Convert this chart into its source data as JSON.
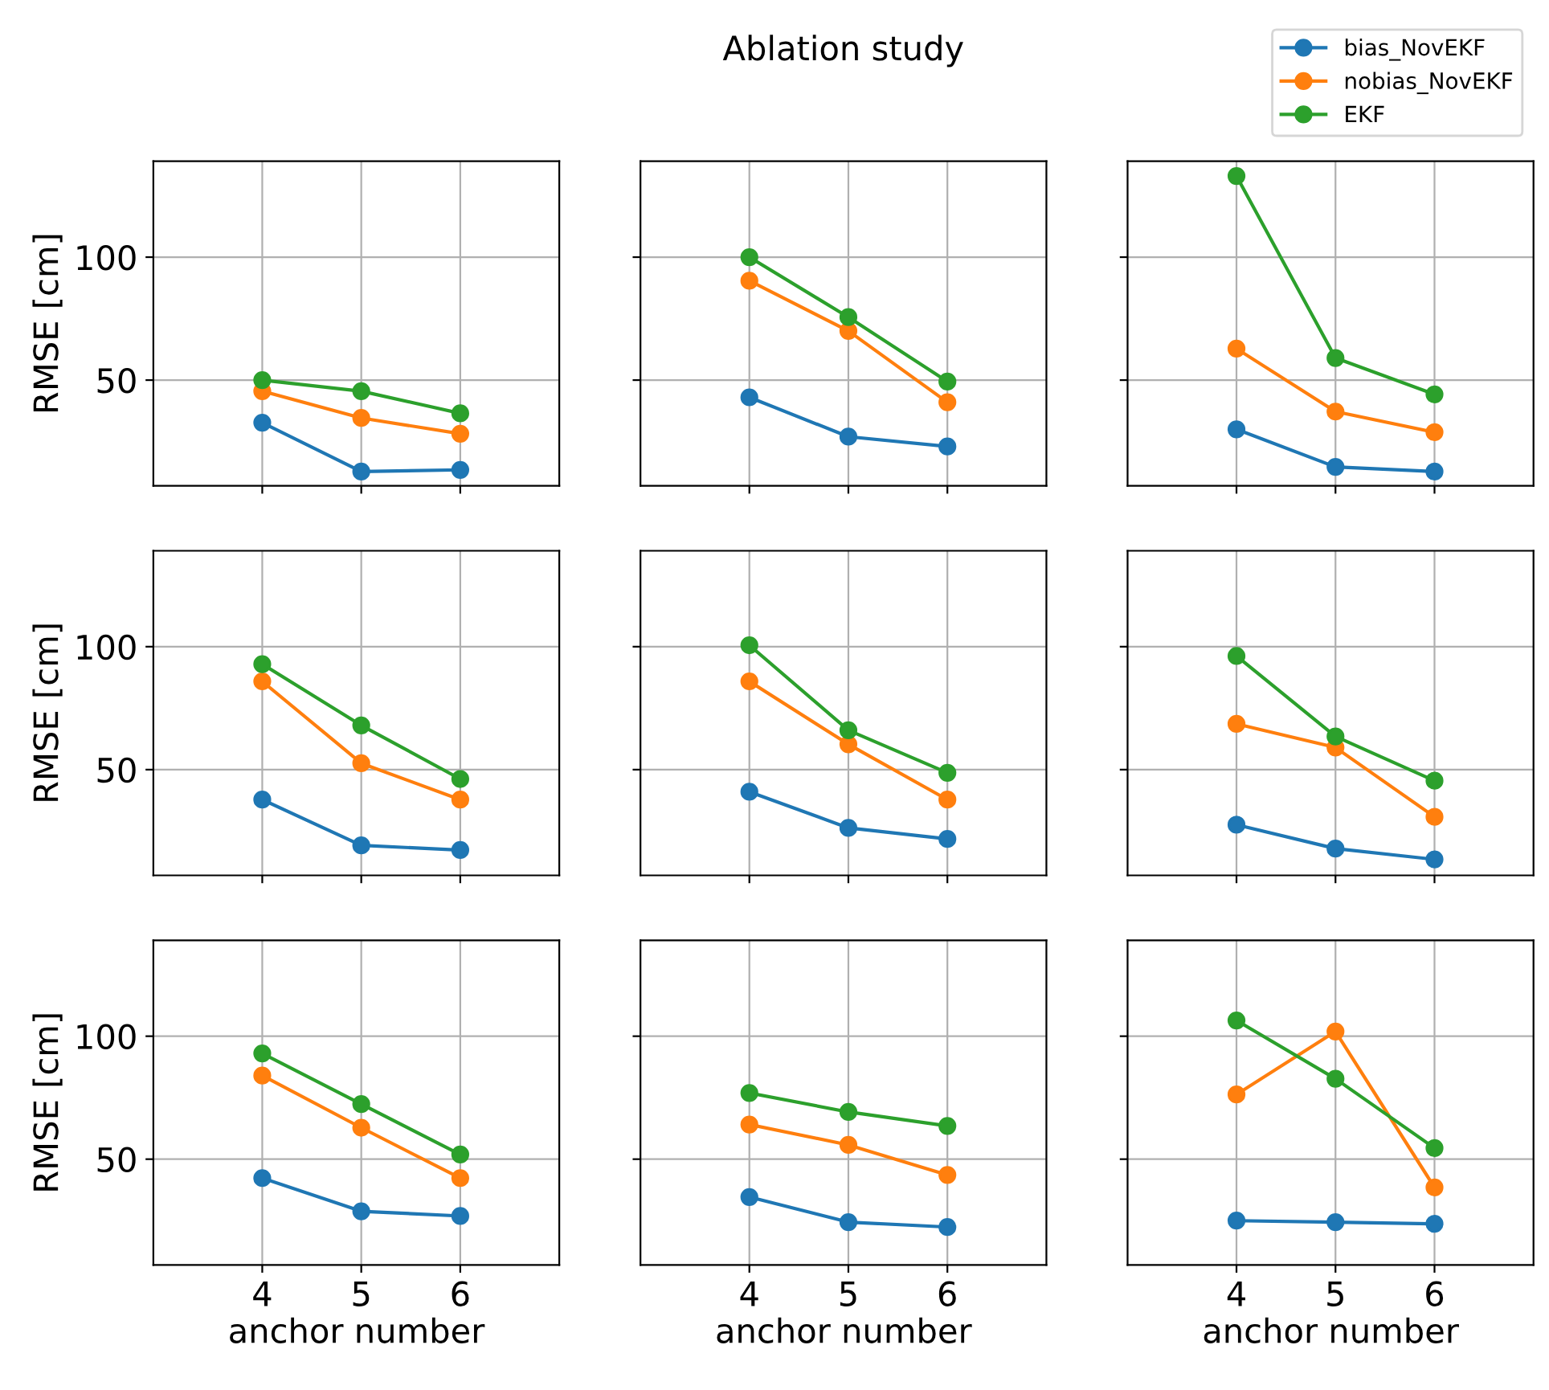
{
  "chart_data": [
    {
      "type": "line",
      "ylabel": "RMSE [cm]",
      "x": [
        4,
        5,
        6
      ],
      "xlim": [
        2.9,
        7.0
      ],
      "ylim": [
        7,
        139
      ],
      "xticks": [
        4,
        5,
        6
      ],
      "yticks": [
        50,
        100
      ],
      "grid": true,
      "marker": "circle",
      "tick_labels": "y",
      "series": [
        {
          "color": "#1f77b4",
          "values": [
            32.7,
            12.8,
            13.5
          ]
        },
        {
          "color": "#ff7f0e",
          "values": [
            45.5,
            34.6,
            28.2
          ]
        },
        {
          "color": "#2ca02c",
          "values": [
            50,
            45.5,
            36.5
          ]
        }
      ]
    },
    {
      "type": "line",
      "title": "Ablation study",
      "x": [
        4,
        5,
        6
      ],
      "xlim": [
        2.9,
        7.0
      ],
      "ylim": [
        7,
        139
      ],
      "xticks": [
        4,
        5,
        6
      ],
      "yticks": [
        50,
        100
      ],
      "grid": true,
      "marker": "circle",
      "tick_labels": false,
      "series": [
        {
          "color": "#1f77b4",
          "values": [
            43,
            27,
            23
          ]
        },
        {
          "color": "#ff7f0e",
          "values": [
            90.4,
            70,
            41
          ]
        },
        {
          "color": "#2ca02c",
          "values": [
            100,
            75.6,
            49.4
          ]
        }
      ]
    },
    {
      "type": "line",
      "x": [
        4,
        5,
        6
      ],
      "xlim": [
        2.9,
        7.0
      ],
      "ylim": [
        7,
        139
      ],
      "xticks": [
        4,
        5,
        6
      ],
      "yticks": [
        50,
        100
      ],
      "grid": true,
      "marker": "circle",
      "tick_labels": false,
      "legend": "top right",
      "series": [
        {
          "name": "bias_NovEKF",
          "color": "#1f77b4",
          "values": [
            30,
            14.7,
            12.8
          ]
        },
        {
          "name": "nobias_NovEKF",
          "color": "#ff7f0e",
          "values": [
            62.8,
            37.2,
            28.8
          ]
        },
        {
          "name": "EKF",
          "color": "#2ca02c",
          "values": [
            133,
            59,
            44.2
          ]
        }
      ]
    },
    {
      "type": "line",
      "ylabel": "RMSE [cm]",
      "x": [
        4,
        5,
        6
      ],
      "xlim": [
        2.9,
        7.0
      ],
      "ylim": [
        7,
        139
      ],
      "xticks": [
        4,
        5,
        6
      ],
      "yticks": [
        50,
        100
      ],
      "grid": true,
      "marker": "circle",
      "tick_labels": "y",
      "series": [
        {
          "color": "#1f77b4",
          "values": [
            37.8,
            19.2,
            17.3
          ]
        },
        {
          "color": "#ff7f0e",
          "values": [
            85.9,
            52.6,
            37.8
          ]
        },
        {
          "color": "#2ca02c",
          "values": [
            92.9,
            68,
            46.2
          ]
        }
      ]
    },
    {
      "type": "line",
      "x": [
        4,
        5,
        6
      ],
      "xlim": [
        2.9,
        7.0
      ],
      "ylim": [
        7,
        139
      ],
      "xticks": [
        4,
        5,
        6
      ],
      "yticks": [
        50,
        100
      ],
      "grid": true,
      "marker": "circle",
      "tick_labels": false,
      "series": [
        {
          "color": "#1f77b4",
          "values": [
            41,
            26.3,
            21.8
          ]
        },
        {
          "color": "#ff7f0e",
          "values": [
            85.9,
            60.3,
            37.8
          ]
        },
        {
          "color": "#2ca02c",
          "values": [
            100.6,
            66,
            48.7
          ]
        }
      ]
    },
    {
      "type": "line",
      "x": [
        4,
        5,
        6
      ],
      "xlim": [
        2.9,
        7.0
      ],
      "ylim": [
        7,
        139
      ],
      "xticks": [
        4,
        5,
        6
      ],
      "yticks": [
        50,
        100
      ],
      "grid": true,
      "marker": "circle",
      "tick_labels": false,
      "series": [
        {
          "color": "#1f77b4",
          "values": [
            27.6,
            17.9,
            13.5
          ]
        },
        {
          "color": "#ff7f0e",
          "values": [
            68.6,
            59,
            30.8
          ]
        },
        {
          "color": "#2ca02c",
          "values": [
            96.2,
            63.5,
            45.5
          ]
        }
      ]
    },
    {
      "type": "line",
      "xlabel": "anchor number",
      "ylabel": "RMSE [cm]",
      "x": [
        4,
        5,
        6
      ],
      "xlim": [
        2.9,
        7.0
      ],
      "ylim": [
        7,
        139
      ],
      "xticks": [
        4,
        5,
        6
      ],
      "yticks": [
        50,
        100
      ],
      "grid": true,
      "marker": "circle",
      "series": [
        {
          "color": "#1f77b4",
          "values": [
            42.3,
            28.8,
            26.9
          ]
        },
        {
          "color": "#ff7f0e",
          "values": [
            84,
            62.8,
            42.3
          ]
        },
        {
          "color": "#2ca02c",
          "values": [
            93,
            72.4,
            51.9
          ]
        }
      ]
    },
    {
      "type": "line",
      "xlabel": "anchor number",
      "x": [
        4,
        5,
        6
      ],
      "xlim": [
        2.9,
        7.0
      ],
      "ylim": [
        7,
        139
      ],
      "xticks": [
        4,
        5,
        6
      ],
      "yticks": [
        50,
        100
      ],
      "grid": true,
      "marker": "circle",
      "tick_labels": "x",
      "series": [
        {
          "color": "#1f77b4",
          "values": [
            34.6,
            24.4,
            22.4
          ]
        },
        {
          "color": "#ff7f0e",
          "values": [
            64.1,
            55.8,
            43.6
          ]
        },
        {
          "color": "#2ca02c",
          "values": [
            76.9,
            69.2,
            63.5
          ]
        }
      ]
    },
    {
      "type": "line",
      "xlabel": "anchor number",
      "x": [
        4,
        5,
        6
      ],
      "xlim": [
        2.9,
        7.0
      ],
      "ylim": [
        7,
        139
      ],
      "xticks": [
        4,
        5,
        6
      ],
      "yticks": [
        50,
        100
      ],
      "grid": true,
      "marker": "circle",
      "tick_labels": "x",
      "series": [
        {
          "color": "#1f77b4",
          "values": [
            25,
            24.4,
            23.7
          ]
        },
        {
          "color": "#ff7f0e",
          "values": [
            76.3,
            101.9,
            38.5
          ]
        },
        {
          "color": "#2ca02c",
          "values": [
            106.4,
            82.7,
            54.5
          ]
        }
      ]
    }
  ]
}
